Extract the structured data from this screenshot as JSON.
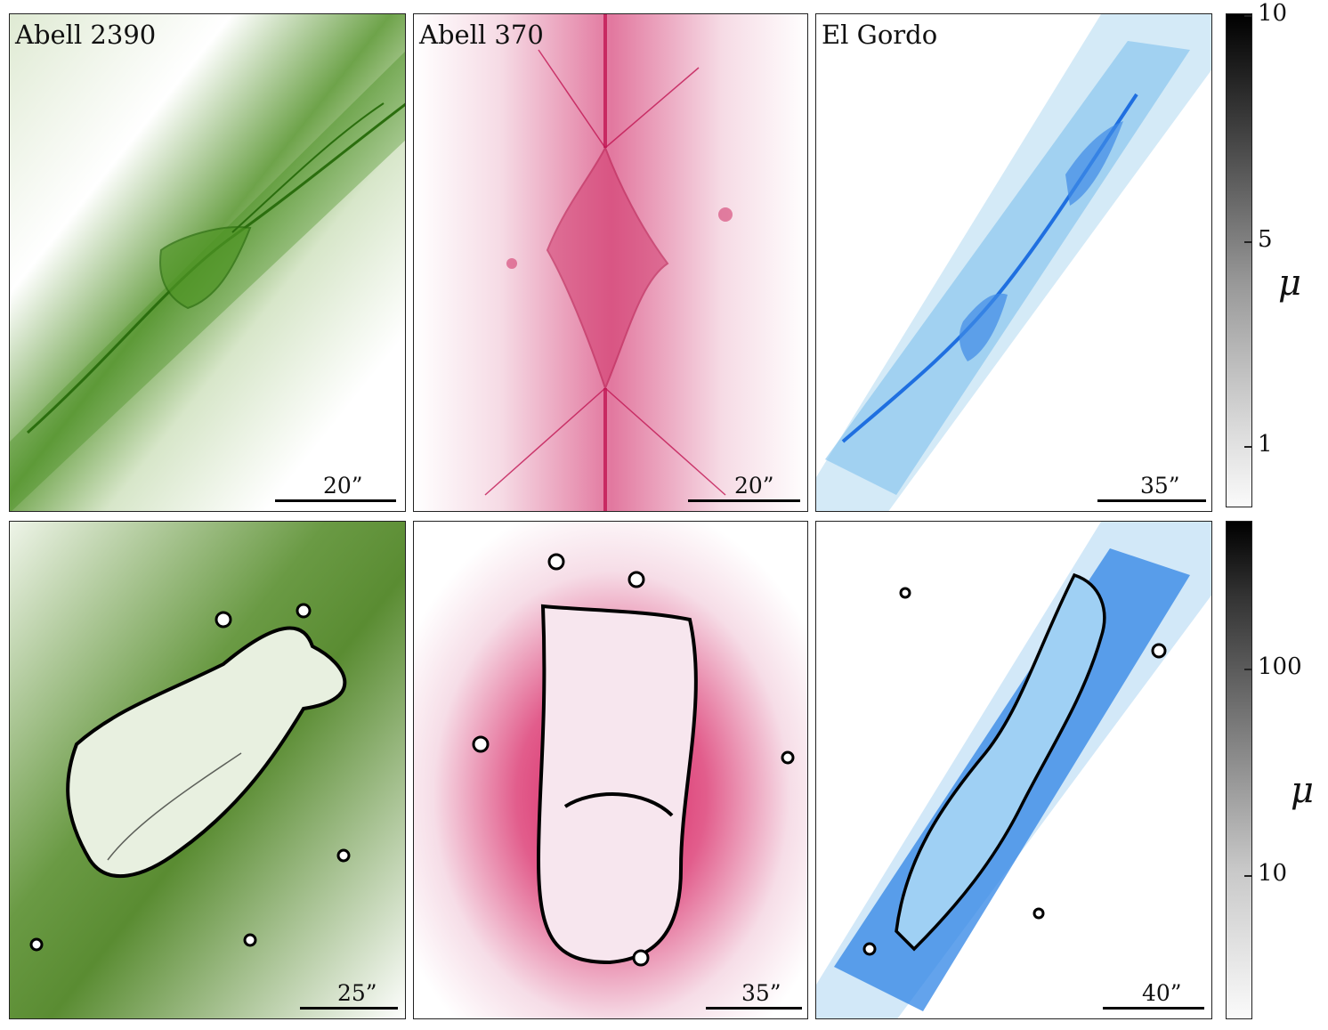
{
  "panels": [
    {
      "title": "Abell 2390",
      "scale_label": "20”",
      "color": "#2e7d0f"
    },
    {
      "title": "Abell 370",
      "scale_label": "20”",
      "color": "#c8144d"
    },
    {
      "title": "El Gordo",
      "scale_label": "35”",
      "color": "#1f6fe0"
    },
    {
      "title": "",
      "scale_label": "25”",
      "color": "#2e7d0f"
    },
    {
      "title": "",
      "scale_label": "35”",
      "color": "#c8144d"
    },
    {
      "title": "",
      "scale_label": "40”",
      "color": "#1f6fe0"
    }
  ],
  "colorbars": [
    {
      "label": "μ",
      "ticks": [
        "10",
        "5",
        "1"
      ]
    },
    {
      "label": "μ",
      "ticks": [
        "100",
        "10"
      ]
    }
  ]
}
